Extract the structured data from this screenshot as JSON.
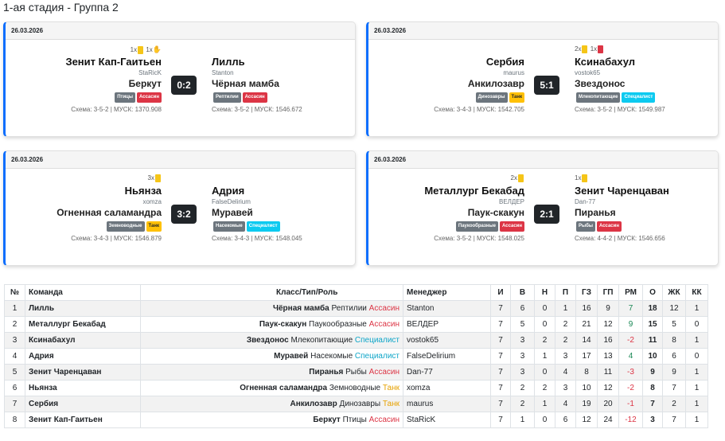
{
  "page_title": "1-ая стадия - Группа 2",
  "colors": {
    "accent": "#0d6efd",
    "role_assassin": "#dc3545",
    "role_tank": "#ffc107",
    "role_specialist": "#0dcaf0",
    "positive": "#198754",
    "negative": "#dc3545"
  },
  "matches": [
    {
      "date": "26.03.2026",
      "home": {
        "cards_text": [
          "1x",
          "1x"
        ],
        "card_icons": [
          "yellow-card",
          "hand-icon"
        ],
        "team": "Зенит Кап-Гаитьен",
        "manager": "StaRicK",
        "class": "Беркут",
        "type": "Птицы",
        "role": "Ассасин",
        "scheme": "Схема: 3-5-2 | МУСК: 1370.908"
      },
      "score": "0:2",
      "away": {
        "cards_text": [],
        "card_icons": [],
        "team": "Лилль",
        "manager": "Stanton",
        "class": "Чёрная мамба",
        "type": "Рептилии",
        "role": "Ассасин",
        "scheme": "Схема: 3-5-2 | МУСК: 1546.672"
      }
    },
    {
      "date": "26.03.2026",
      "home": {
        "cards_text": [],
        "card_icons": [],
        "team": "Сербия",
        "manager": "maurus",
        "class": "Анкилозавр",
        "type": "Динозавры",
        "role": "Танк",
        "scheme": "Схема: 3-4-3 | МУСК: 1542.705"
      },
      "score": "5:1",
      "away": {
        "cards_text": [
          "2x",
          "1x"
        ],
        "card_icons": [
          "yellow-card",
          "red-card"
        ],
        "team": "Ксинабахул",
        "manager": "vostok65",
        "class": "Звездонос",
        "type": "Млекопитающие",
        "role": "Специалист",
        "scheme": "Схема: 3-5-2 | МУСК: 1549.987"
      }
    },
    {
      "date": "26.03.2026",
      "home": {
        "cards_text": [
          "3x"
        ],
        "card_icons": [
          "yellow-card"
        ],
        "team": "Ньянза",
        "manager": "xomza",
        "class": "Огненная саламандра",
        "type": "Земноводные",
        "role": "Танк",
        "scheme": "Схема: 3-4-3 | МУСК: 1546.879"
      },
      "score": "3:2",
      "away": {
        "cards_text": [],
        "card_icons": [],
        "team": "Адрия",
        "manager": "FalseDelirium",
        "class": "Муравей",
        "type": "Насекомые",
        "role": "Специалист",
        "scheme": "Схема: 3-4-3 | МУСК: 1548.045"
      }
    },
    {
      "date": "26.03.2026",
      "home": {
        "cards_text": [
          "2x"
        ],
        "card_icons": [
          "yellow-card"
        ],
        "team": "Металлург Бекабад",
        "manager": "ВЕЛДЕР",
        "class": "Паук-скакун",
        "type": "Паукообразные",
        "role": "Ассасин",
        "scheme": "Схема: 3-5-2 | МУСК: 1548.025"
      },
      "score": "2:1",
      "away": {
        "cards_text": [
          "1x"
        ],
        "card_icons": [
          "yellow-card"
        ],
        "team": "Зенит Чаренцаван",
        "manager": "Dan-77",
        "class": "Пиранья",
        "type": "Рыбы",
        "role": "Ассасин",
        "scheme": "Схема: 4-4-2 | МУСК: 1546.656"
      }
    }
  ],
  "table": {
    "headers": [
      "№",
      "Команда",
      "Класс/Тип/Роль",
      "Менеджер",
      "И",
      "В",
      "Н",
      "П",
      "ГЗ",
      "ГП",
      "РМ",
      "О",
      "ЖК",
      "КК"
    ],
    "rows": [
      {
        "n": "1",
        "team": "Лилль",
        "class": "Чёрная мамба",
        "type": "Рептилии",
        "role": "Ассасин",
        "role_kind": "red",
        "manager": "Stanton",
        "games": "7",
        "w": "6",
        "d": "0",
        "l": "1",
        "gf": "16",
        "ga": "9",
        "gd": "7",
        "pts": "18",
        "yc": "12",
        "rc": "1"
      },
      {
        "n": "2",
        "team": "Металлург Бекабад",
        "class": "Паук-скакун",
        "type": "Паукообразные",
        "role": "Ассасин",
        "role_kind": "red",
        "manager": "ВЕЛДЕР",
        "games": "7",
        "w": "5",
        "d": "0",
        "l": "2",
        "gf": "21",
        "ga": "12",
        "gd": "9",
        "pts": "15",
        "yc": "5",
        "rc": "0"
      },
      {
        "n": "3",
        "team": "Ксинабахул",
        "class": "Звездонос",
        "type": "Млекопитающие",
        "role": "Специалист",
        "role_kind": "cyan",
        "manager": "vostok65",
        "games": "7",
        "w": "3",
        "d": "2",
        "l": "2",
        "gf": "14",
        "ga": "16",
        "gd": "-2",
        "pts": "11",
        "yc": "8",
        "rc": "1"
      },
      {
        "n": "4",
        "team": "Адрия",
        "class": "Муравей",
        "type": "Насекомые",
        "role": "Специалист",
        "role_kind": "cyan",
        "manager": "FalseDelirium",
        "games": "7",
        "w": "3",
        "d": "1",
        "l": "3",
        "gf": "17",
        "ga": "13",
        "gd": "4",
        "pts": "10",
        "yc": "6",
        "rc": "0"
      },
      {
        "n": "5",
        "team": "Зенит Чаренцаван",
        "class": "Пиранья",
        "type": "Рыбы",
        "role": "Ассасин",
        "role_kind": "red",
        "manager": "Dan-77",
        "games": "7",
        "w": "3",
        "d": "0",
        "l": "4",
        "gf": "8",
        "ga": "11",
        "gd": "-3",
        "pts": "9",
        "yc": "9",
        "rc": "1"
      },
      {
        "n": "6",
        "team": "Ньянза",
        "class": "Огненная саламандра",
        "type": "Земноводные",
        "role": "Танк",
        "role_kind": "yellow",
        "manager": "xomza",
        "games": "7",
        "w": "2",
        "d": "2",
        "l": "3",
        "gf": "10",
        "ga": "12",
        "gd": "-2",
        "pts": "8",
        "yc": "7",
        "rc": "1"
      },
      {
        "n": "7",
        "team": "Сербия",
        "class": "Анкилозавр",
        "type": "Динозавры",
        "role": "Танк",
        "role_kind": "yellow",
        "manager": "maurus",
        "games": "7",
        "w": "2",
        "d": "1",
        "l": "4",
        "gf": "19",
        "ga": "20",
        "gd": "-1",
        "pts": "7",
        "yc": "2",
        "rc": "1"
      },
      {
        "n": "8",
        "team": "Зенит Кап-Гаитьен",
        "class": "Беркут",
        "type": "Птицы",
        "role": "Ассасин",
        "role_kind": "red",
        "manager": "StaRicK",
        "games": "7",
        "w": "1",
        "d": "0",
        "l": "6",
        "gf": "12",
        "ga": "24",
        "gd": "-12",
        "pts": "3",
        "yc": "7",
        "rc": "1"
      }
    ]
  }
}
